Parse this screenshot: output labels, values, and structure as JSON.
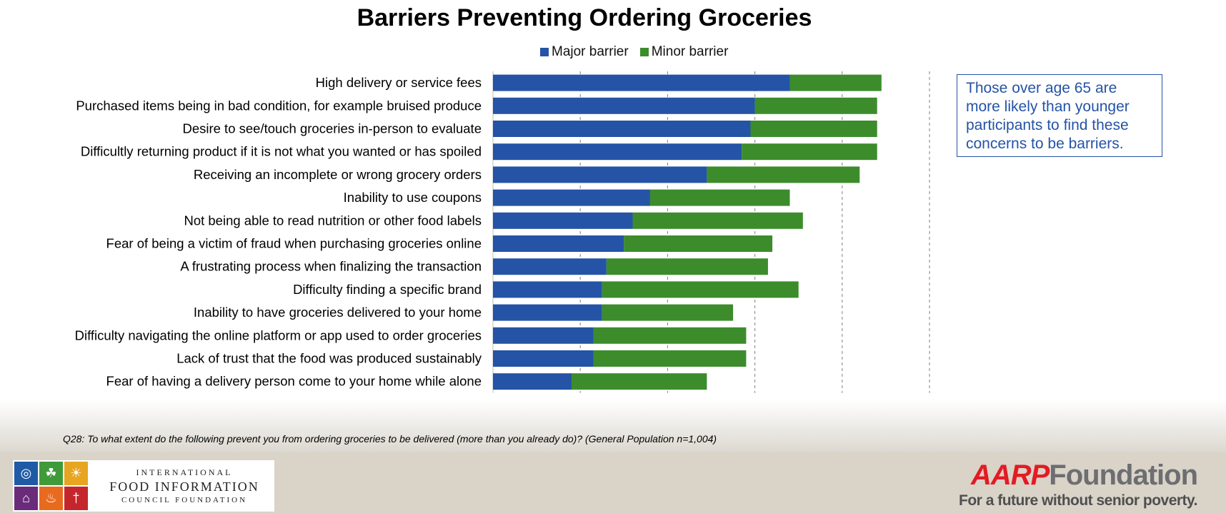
{
  "chart_data": {
    "type": "bar",
    "orientation": "horizontal",
    "stacked": true,
    "title": "Barriers Preventing Ordering Groceries",
    "categories": [
      "High delivery or service fees",
      "Purchased items being in bad condition, for example bruised produce",
      "Desire to see/touch groceries in-person to evaluate",
      "Difficultly returning product if it is not what you wanted or has spoiled",
      "Receiving an incomplete or wrong grocery orders",
      "Inability to use coupons",
      "Not being able to read nutrition or other food labels",
      "Fear of being a victim of fraud when purchasing groceries online",
      "A frustrating process when finalizing the transaction",
      "Difficulty finding a specific brand",
      "Inability to have groceries delivered to your home",
      "Difficulty navigating the online platform or app used to order groceries",
      "Lack of trust that the food was produced sustainably",
      "Fear of having a delivery person come to your home while alone"
    ],
    "series": [
      {
        "name": "Major barrier",
        "color": "#2553a6",
        "values": [
          68,
          60,
          59,
          57,
          49,
          36,
          32,
          30,
          26,
          25,
          25,
          23,
          23,
          18
        ]
      },
      {
        "name": "Minor barrier",
        "color": "#3c8c2c",
        "values": [
          21,
          28,
          29,
          31,
          35,
          32,
          39,
          34,
          37,
          45,
          30,
          35,
          35,
          31
        ]
      }
    ],
    "xlim": [
      0,
      100
    ],
    "xticks": [
      "0%",
      "20%",
      "40%",
      "60%",
      "80%",
      "100%"
    ],
    "grid": "vertical dashed",
    "legend": "top"
  },
  "callout": "Those over age 65 are more likely than younger participants to find these concerns to be barriers.",
  "footnote": "Q28: To what extent do the following prevent you from ordering groceries to be delivered (more than you already do)? (General Population n=1,004)",
  "ific_logo": {
    "line1": "INTERNATIONAL",
    "line2": "FOOD INFORMATION",
    "line3": "COUNCIL FOUNDATION",
    "tile_colors": [
      "#1f5aa6",
      "#3f9b3a",
      "#e8a522",
      "#6a2c7a",
      "#e86a1f",
      "#c5262c"
    ]
  },
  "aarp_logo": {
    "brand_red": "AARP",
    "brand_gray": "Foundation",
    "tagline": "For a future without senior poverty."
  }
}
